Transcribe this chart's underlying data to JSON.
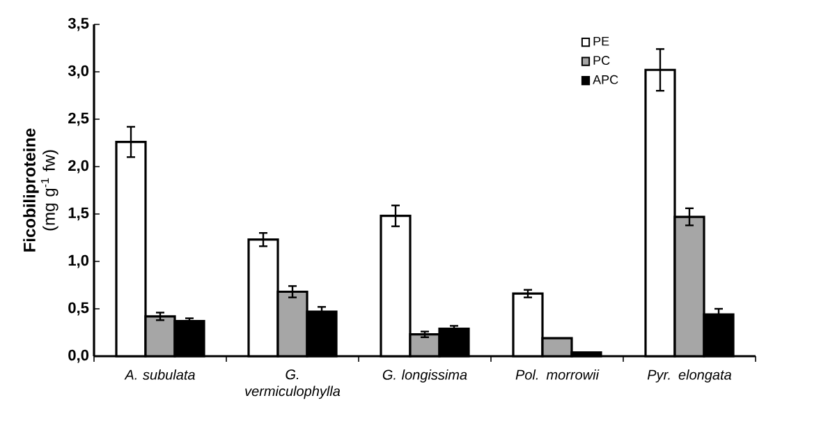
{
  "chart_data": {
    "type": "bar",
    "ylabel": "**Ficobiliproteine** (mg g$^{-1}$ fw)",
    "categories": [
      "A. subulata",
      "G. vermiculophylla",
      "G. longissima",
      "Pol. morrowii",
      "Pyr. elongata"
    ],
    "series": [
      {
        "name": "PE",
        "color": "#ffffff",
        "values": [
          2.26,
          1.23,
          1.48,
          0.66,
          3.02
        ],
        "errors": [
          0.16,
          0.07,
          0.11,
          0.04,
          0.22
        ]
      },
      {
        "name": "PC",
        "color": "#a6a6a6",
        "values": [
          0.42,
          0.68,
          0.23,
          0.19,
          1.47
        ],
        "errors": [
          0.04,
          0.06,
          0.03,
          null,
          0.09
        ]
      },
      {
        "name": "APC",
        "color": "#000000",
        "values": [
          0.37,
          0.47,
          0.29,
          0.04,
          0.44
        ],
        "errors": [
          0.03,
          0.05,
          0.03,
          null,
          0.06
        ]
      }
    ],
    "ylim": [
      0,
      3.5
    ],
    "yticks": [
      {
        "value": 0,
        "label": "0,0"
      },
      {
        "value": 0.5,
        "label": "0,5"
      },
      {
        "value": 1,
        "label": "1,0"
      },
      {
        "value": 1.5,
        "label": "1,5"
      },
      {
        "value": 2,
        "label": "2,0"
      },
      {
        "value": 2.5,
        "label": "2,5"
      },
      {
        "value": 3,
        "label": "3,0"
      },
      {
        "value": 3.5,
        "label": "3,5"
      }
    ],
    "legend": "top right",
    "grid": false
  }
}
